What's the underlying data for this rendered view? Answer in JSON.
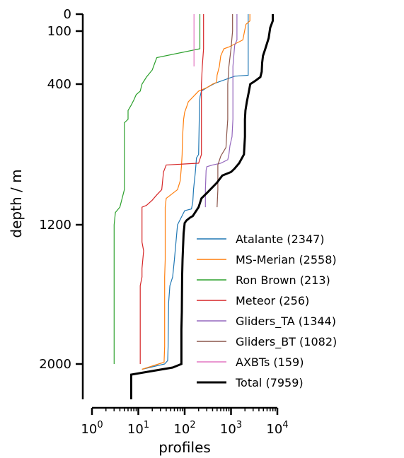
{
  "chart_data": {
    "type": "line",
    "xlabel": "profiles",
    "ylabel": "depth / m",
    "xscale": "log",
    "xlim": [
      1,
      10000
    ],
    "ylim": [
      2200,
      0
    ],
    "xticks": [
      {
        "value": 1,
        "base": "10",
        "exp": "0"
      },
      {
        "value": 10,
        "base": "10",
        "exp": "1"
      },
      {
        "value": 100,
        "base": "10",
        "exp": "2"
      },
      {
        "value": 1000,
        "base": "10",
        "exp": "3"
      },
      {
        "value": 10000,
        "base": "10",
        "exp": "4"
      }
    ],
    "yticks": [
      {
        "value": 0,
        "label": "0"
      },
      {
        "value": 100,
        "label": "100"
      },
      {
        "value": 400,
        "label": "400"
      },
      {
        "value": 1200,
        "label": "1200"
      },
      {
        "value": 2000,
        "label": "2000"
      }
    ],
    "legend_position": "lower-right",
    "series": [
      {
        "name": "Atalante (2347)",
        "color": "#1f77b4",
        "width": 1.2,
        "points": [
          [
            2347,
            0
          ],
          [
            2347,
            350
          ],
          [
            1200,
            355
          ],
          [
            450,
            395
          ],
          [
            300,
            420
          ],
          [
            230,
            440
          ],
          [
            215,
            470
          ],
          [
            210,
            500
          ],
          [
            200,
            800
          ],
          [
            180,
            820
          ],
          [
            170,
            900
          ],
          [
            155,
            1000
          ],
          [
            150,
            1070
          ],
          [
            140,
            1110
          ],
          [
            100,
            1120
          ],
          [
            70,
            1200
          ],
          [
            65,
            1300
          ],
          [
            60,
            1400
          ],
          [
            55,
            1500
          ],
          [
            48,
            1550
          ],
          [
            45,
            1650
          ],
          [
            44,
            1900
          ],
          [
            43,
            1980
          ],
          [
            37,
            2000
          ],
          [
            12,
            2030
          ]
        ]
      },
      {
        "name": "MS-Merian (2558)",
        "color": "#ff7f0e",
        "width": 1.2,
        "points": [
          [
            2558,
            0
          ],
          [
            2558,
            40
          ],
          [
            2100,
            60
          ],
          [
            1800,
            150
          ],
          [
            900,
            190
          ],
          [
            700,
            200
          ],
          [
            600,
            240
          ],
          [
            560,
            300
          ],
          [
            500,
            350
          ],
          [
            490,
            390
          ],
          [
            400,
            400
          ],
          [
            300,
            420
          ],
          [
            200,
            440
          ],
          [
            120,
            500
          ],
          [
            110,
            530
          ],
          [
            100,
            560
          ],
          [
            95,
            600
          ],
          [
            90,
            700
          ],
          [
            88,
            800
          ],
          [
            85,
            870
          ],
          [
            80,
            950
          ],
          [
            70,
            1000
          ],
          [
            40,
            1050
          ],
          [
            38,
            1100
          ],
          [
            38,
            1400
          ],
          [
            37,
            1500
          ],
          [
            37,
            1700
          ],
          [
            37,
            1900
          ],
          [
            36,
            1990
          ],
          [
            12,
            2030
          ]
        ]
      },
      {
        "name": "Ron Brown (213)",
        "color": "#2ca02c",
        "width": 1.2,
        "points": [
          [
            213,
            0
          ],
          [
            213,
            200
          ],
          [
            25,
            250
          ],
          [
            22,
            290
          ],
          [
            20,
            320
          ],
          [
            15,
            360
          ],
          [
            12,
            400
          ],
          [
            11,
            440
          ],
          [
            9,
            460
          ],
          [
            8,
            490
          ],
          [
            7,
            520
          ],
          [
            6,
            550
          ],
          [
            6,
            600
          ],
          [
            5,
            620
          ],
          [
            5,
            1000
          ],
          [
            4,
            1100
          ],
          [
            3.2,
            1130
          ],
          [
            3,
            1200
          ],
          [
            3,
            2000
          ]
        ]
      },
      {
        "name": "Meteor (256)",
        "color": "#d62728",
        "width": 1.2,
        "points": [
          [
            256,
            0
          ],
          [
            256,
            200
          ],
          [
            240,
            300
          ],
          [
            230,
            400
          ],
          [
            230,
            800
          ],
          [
            200,
            850
          ],
          [
            40,
            860
          ],
          [
            35,
            900
          ],
          [
            32,
            1000
          ],
          [
            25,
            1030
          ],
          [
            20,
            1060
          ],
          [
            15,
            1090
          ],
          [
            12,
            1100
          ],
          [
            12,
            1300
          ],
          [
            13,
            1350
          ],
          [
            12,
            1450
          ],
          [
            12,
            1500
          ],
          [
            11,
            1550
          ],
          [
            11,
            1800
          ],
          [
            11,
            1900
          ],
          [
            11,
            2000
          ]
        ]
      },
      {
        "name": "Gliders_TA (1344)",
        "color": "#9467bd",
        "width": 1.2,
        "points": [
          [
            1344,
            0
          ],
          [
            1344,
            150
          ],
          [
            1200,
            180
          ],
          [
            1100,
            300
          ],
          [
            1100,
            600
          ],
          [
            1050,
            700
          ],
          [
            950,
            750
          ],
          [
            900,
            800
          ],
          [
            850,
            830
          ],
          [
            600,
            850
          ],
          [
            400,
            860
          ],
          [
            300,
            870
          ],
          [
            290,
            890
          ],
          [
            280,
            1000
          ],
          [
            280,
            1100
          ]
        ]
      },
      {
        "name": "Gliders_BT (1082)",
        "color": "#8c564b",
        "width": 1.2,
        "points": [
          [
            1082,
            0
          ],
          [
            1082,
            100
          ],
          [
            1000,
            200
          ],
          [
            900,
            300
          ],
          [
            850,
            400
          ],
          [
            850,
            600
          ],
          [
            800,
            700
          ],
          [
            780,
            760
          ],
          [
            600,
            810
          ],
          [
            520,
            860
          ],
          [
            520,
            1000
          ],
          [
            500,
            1100
          ]
        ]
      },
      {
        "name": "AXBTs (159)",
        "color": "#e377c2",
        "width": 1.2,
        "points": [
          [
            159,
            0
          ],
          [
            159,
            300
          ]
        ]
      },
      {
        "name": "Total (7959)",
        "color": "#000000",
        "width": 3.0,
        "points": [
          [
            7959,
            0
          ],
          [
            7959,
            40
          ],
          [
            7000,
            80
          ],
          [
            6500,
            140
          ],
          [
            5500,
            200
          ],
          [
            4900,
            240
          ],
          [
            4700,
            280
          ],
          [
            4600,
            330
          ],
          [
            4300,
            360
          ],
          [
            3400,
            380
          ],
          [
            2600,
            400
          ],
          [
            2400,
            450
          ],
          [
            2200,
            500
          ],
          [
            2050,
            550
          ],
          [
            2000,
            600
          ],
          [
            2000,
            700
          ],
          [
            1900,
            800
          ],
          [
            1500,
            850
          ],
          [
            1200,
            880
          ],
          [
            1000,
            900
          ],
          [
            650,
            920
          ],
          [
            500,
            960
          ],
          [
            300,
            1020
          ],
          [
            230,
            1050
          ],
          [
            200,
            1100
          ],
          [
            150,
            1150
          ],
          [
            130,
            1160
          ],
          [
            110,
            1175
          ],
          [
            100,
            1190
          ],
          [
            95,
            1250
          ],
          [
            90,
            1400
          ],
          [
            88,
            1500
          ],
          [
            87,
            1700
          ],
          [
            85,
            1800
          ],
          [
            85,
            1900
          ],
          [
            85,
            2000
          ],
          [
            55,
            2020
          ],
          [
            7,
            2060
          ],
          [
            7,
            2200
          ]
        ]
      }
    ]
  }
}
